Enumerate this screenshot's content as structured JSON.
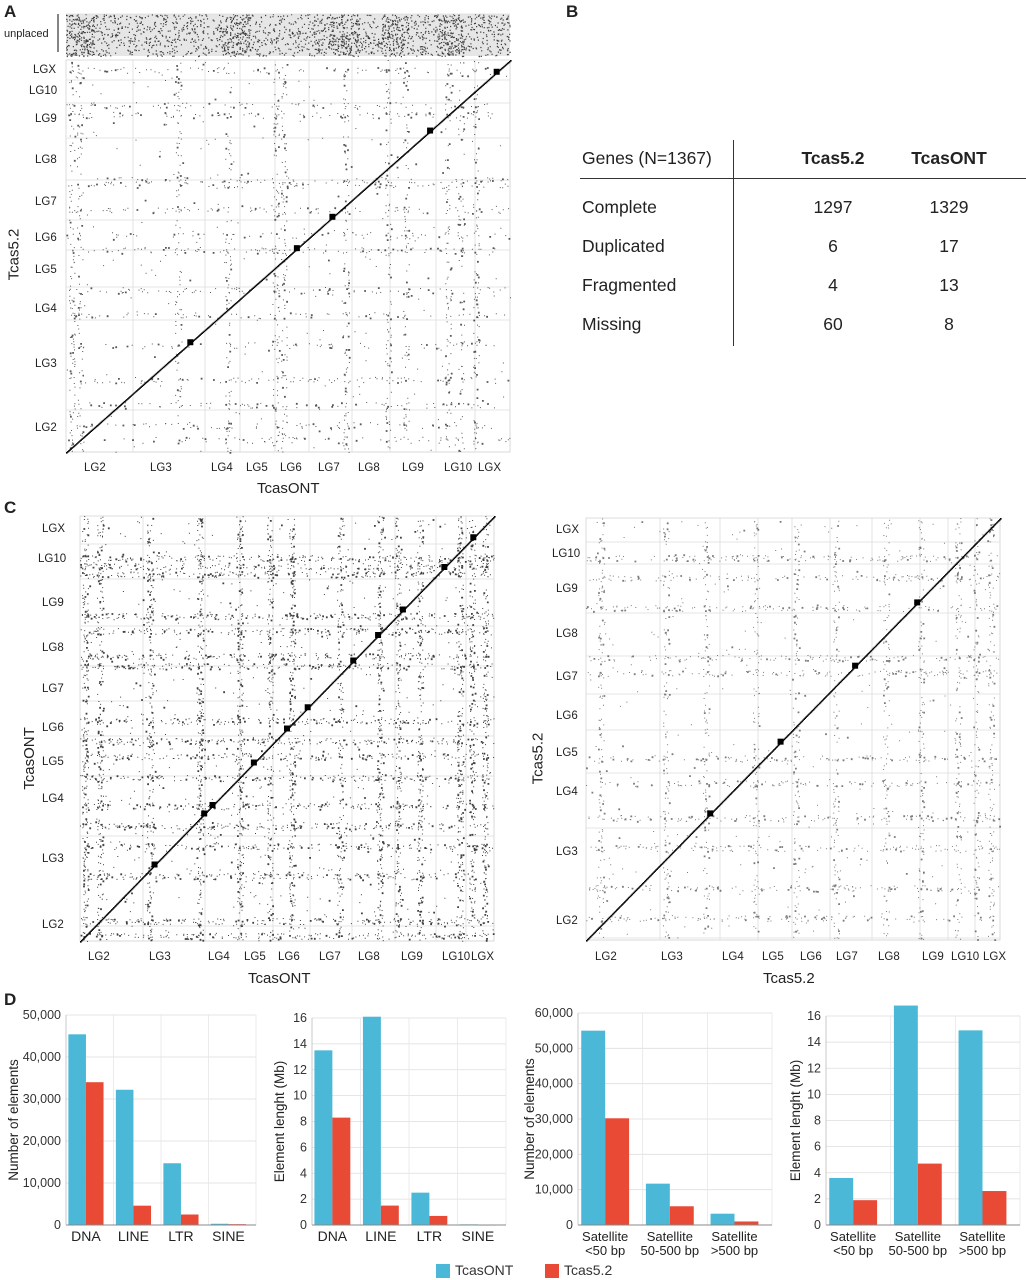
{
  "panels": {
    "a": "A",
    "b": "B",
    "c": "C",
    "d": "D"
  },
  "panelA": {
    "x_title": "TcasONT",
    "y_title": "Tcas5.2",
    "unplaced_label": "unplaced",
    "x_labels": [
      "LG2",
      "LG3",
      "LG4",
      "LG5",
      "LG6",
      "LG7",
      "LG8",
      "LG9",
      "LG10",
      "LGX"
    ],
    "y_labels": [
      "LGX",
      "LG10",
      "LG9",
      "LG8",
      "LG7",
      "LG6",
      "LG5",
      "LG4",
      "LG3",
      "LG2"
    ]
  },
  "panelC1": {
    "x_title": "TcasONT",
    "y_title": "TcasONT",
    "x_labels": [
      "LG2",
      "LG3",
      "LG4",
      "LG5",
      "LG6",
      "LG7",
      "LG8",
      "LG9",
      "LG10",
      "LGX"
    ],
    "y_labels": [
      "LGX",
      "LG10",
      "LG9",
      "LG8",
      "LG7",
      "LG6",
      "LG5",
      "LG4",
      "LG3",
      "LG2"
    ]
  },
  "panelC2": {
    "x_title": "Tcas5.2",
    "y_title": "Tcas5.2",
    "x_labels": [
      "LG2",
      "LG3",
      "LG4",
      "LG5",
      "LG6",
      "LG7",
      "LG8",
      "LG9",
      "LG10",
      "LGX"
    ],
    "y_labels": [
      "LGX",
      "LG10",
      "LG9",
      "LG8",
      "LG7",
      "LG6",
      "LG5",
      "LG4",
      "LG3",
      "LG2"
    ]
  },
  "busco": {
    "header": [
      "Genes (N=1367)",
      "Tcas5.2",
      "TcasONT"
    ],
    "rows": [
      [
        "Complete",
        "1297",
        "1329"
      ],
      [
        "Duplicated",
        "6",
        "17"
      ],
      [
        "Fragmented",
        "4",
        "13"
      ],
      [
        "Missing",
        "60",
        "8"
      ]
    ]
  },
  "legend": {
    "items": [
      {
        "label": "TcasONT",
        "color": "#4ab8d6"
      },
      {
        "label": "Tcas5.2",
        "color": "#e84a35"
      }
    ]
  },
  "chart_data": [
    {
      "type": "bar",
      "categories": [
        "DNA",
        "LINE",
        "LTR",
        "SINE"
      ],
      "series": [
        {
          "name": "TcasONT",
          "values": [
            45400,
            32200,
            14700,
            300
          ]
        },
        {
          "name": "Tcas5.2",
          "values": [
            34000,
            4600,
            2500,
            200
          ]
        }
      ],
      "ylabel": "Number of elements",
      "ylim": [
        0,
        50000
      ],
      "yticks": [
        "0",
        "10,000",
        "20,000",
        "30,000",
        "40,000",
        "50,000"
      ],
      "grid": true
    },
    {
      "type": "bar",
      "categories": [
        "DNA",
        "LINE",
        "LTR",
        "SINE"
      ],
      "series": [
        {
          "name": "TcasONT",
          "values": [
            13.5,
            16.1,
            2.5,
            0.05
          ]
        },
        {
          "name": "Tcas5.2",
          "values": [
            8.3,
            1.5,
            0.7,
            0.02
          ]
        }
      ],
      "ylabel": "Element lenght (Mb)",
      "ylim": [
        0,
        16
      ],
      "yticks": [
        "0",
        "2",
        "4",
        "6",
        "8",
        "10",
        "12",
        "14",
        "16"
      ],
      "grid": true
    },
    {
      "type": "bar",
      "categories": [
        "Satellite\n<50 bp",
        "Satellite\n50-500 bp",
        "Satellite\n>500 bp"
      ],
      "series": [
        {
          "name": "TcasONT",
          "values": [
            55000,
            11700,
            3200
          ]
        },
        {
          "name": "Tcas5.2",
          "values": [
            30200,
            5300,
            1000
          ]
        }
      ],
      "ylabel": "Number of elements",
      "ylim": [
        0,
        60000
      ],
      "yticks": [
        "0",
        "10,000",
        "20,000",
        "30,000",
        "40,000",
        "50,000",
        "60,000"
      ],
      "grid": true
    },
    {
      "type": "bar",
      "categories": [
        "Satellite\n<50 bp",
        "Satellite\n50-500 bp",
        "Satellite\n>500 bp"
      ],
      "series": [
        {
          "name": "TcasONT",
          "values": [
            3.6,
            16.8,
            14.9
          ]
        },
        {
          "name": "Tcas5.2",
          "values": [
            1.9,
            4.7,
            2.6
          ]
        }
      ],
      "ylabel": "Element lenght (Mb)",
      "ylim": [
        0,
        16
      ],
      "yticks": [
        "0",
        "2",
        "4",
        "6",
        "8",
        "10",
        "12",
        "14",
        "16"
      ],
      "grid": true
    }
  ]
}
